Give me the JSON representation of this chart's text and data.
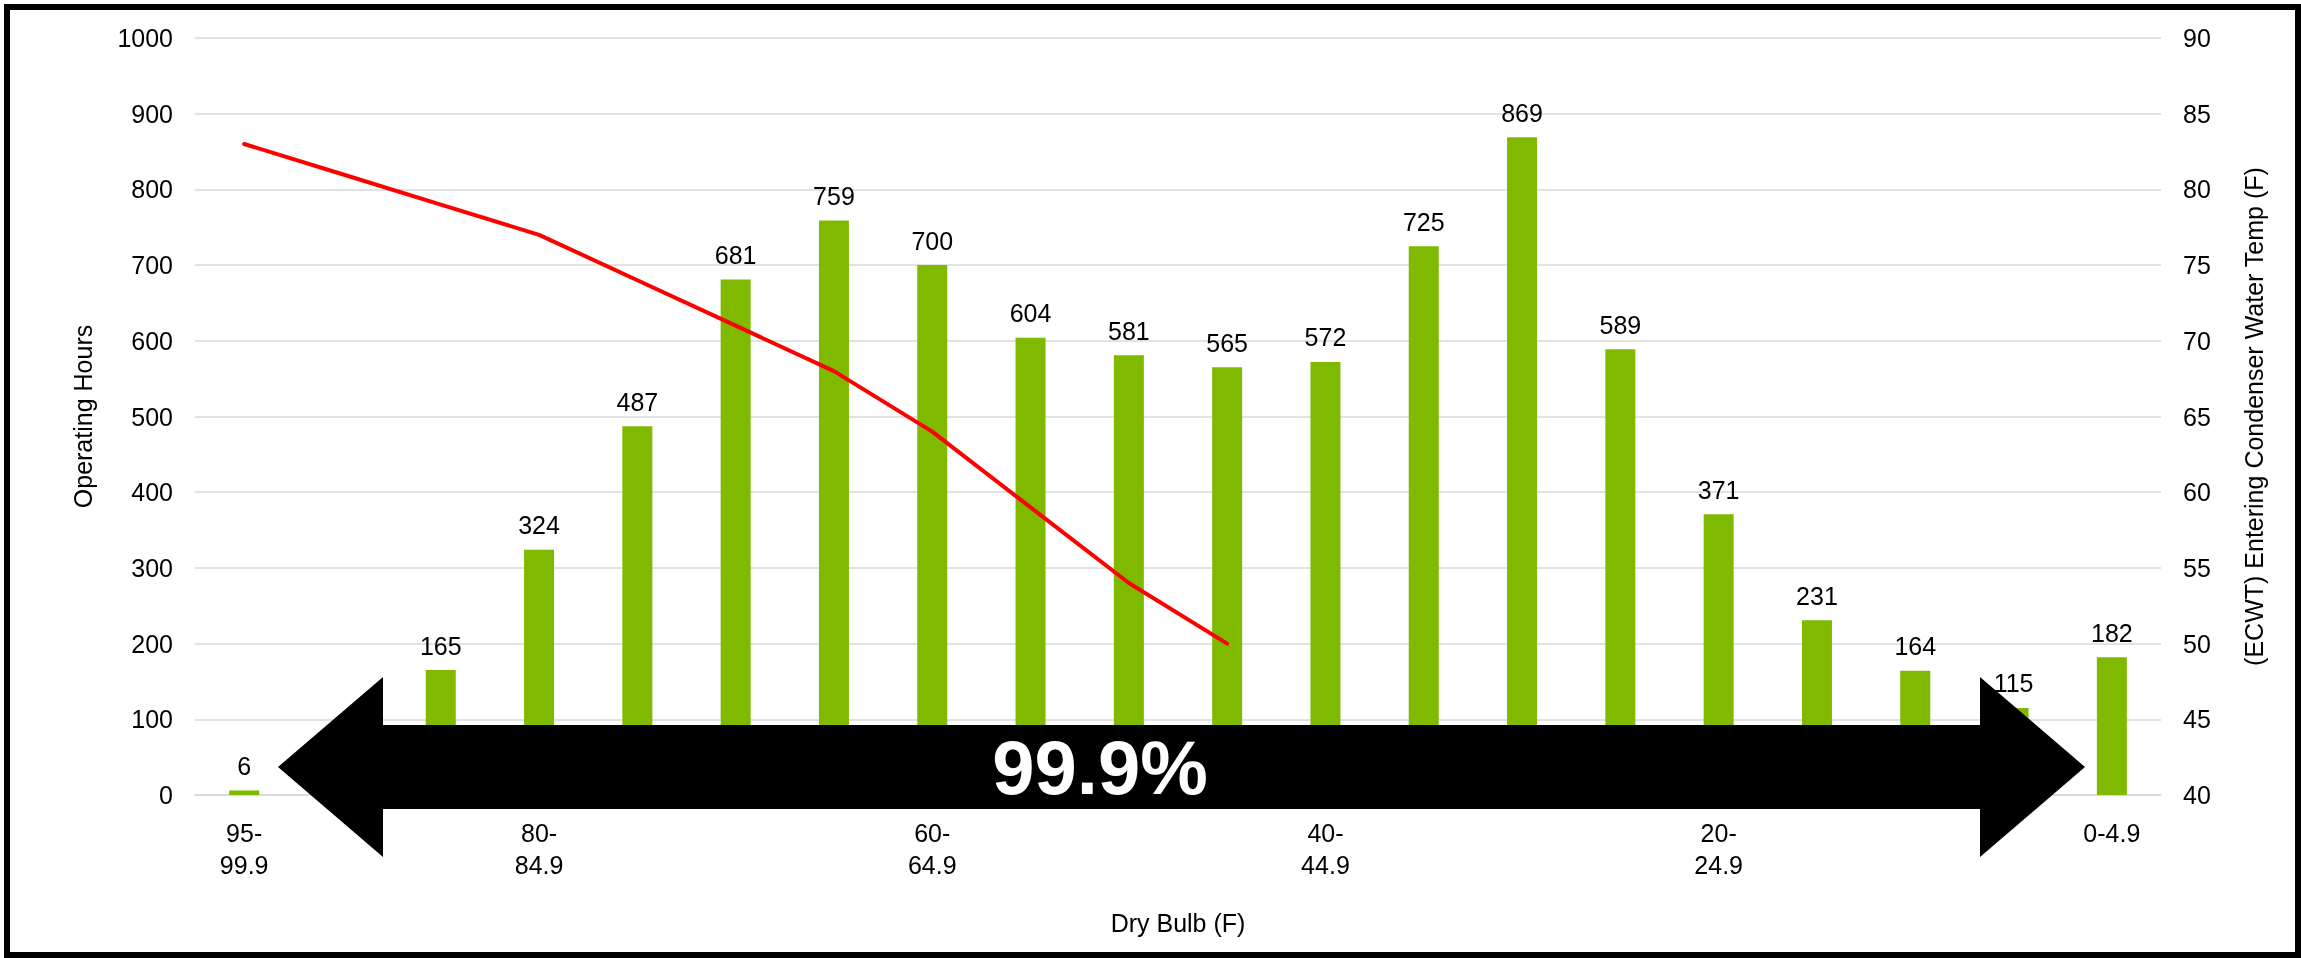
{
  "chart_data": {
    "type": "bar",
    "xlabel": "Dry Bulb (F)",
    "ylabel": "Operating Hours",
    "y2label": "(ECWT) Entering Condenser Water Temp (F)",
    "categories": [
      "95-99.9",
      null,
      null,
      "80-84.9",
      null,
      null,
      null,
      "60-64.9",
      null,
      null,
      null,
      "40-44.9",
      null,
      null,
      null,
      "20-24.9",
      null,
      null,
      null,
      "0-4.9"
    ],
    "series": [
      {
        "color": "#7fba00",
        "values": [
          6,
          null,
          165,
          324,
          487,
          681,
          759,
          700,
          604,
          581,
          565,
          572,
          725,
          869,
          589,
          371,
          231,
          164,
          115,
          182
        ],
        "value_labels": [
          "6",
          null,
          "165",
          "324",
          "487",
          "681",
          "759",
          "700",
          "604",
          "581",
          "565",
          "572",
          "725",
          "869",
          "589",
          "371",
          "231",
          "164",
          "115",
          "182"
        ]
      },
      {
        "type": "line",
        "axis": "y2",
        "color": "#ff0000",
        "values": [
          83,
          81,
          79,
          77,
          74,
          71,
          68,
          64,
          59,
          54,
          50,
          null,
          null,
          null,
          null,
          null,
          null,
          null,
          null,
          null
        ]
      }
    ],
    "ylim": [
      0,
      1000
    ],
    "yticks": [
      0,
      100,
      200,
      300,
      400,
      500,
      600,
      700,
      800,
      900,
      1000
    ],
    "y2lim": [
      40,
      90
    ],
    "y2ticks": [
      40,
      45,
      50,
      55,
      60,
      65,
      70,
      75,
      80,
      85,
      90
    ],
    "grid": "y",
    "marker": "none",
    "line_style": "solid",
    "annotations": [
      "99.9%"
    ]
  }
}
